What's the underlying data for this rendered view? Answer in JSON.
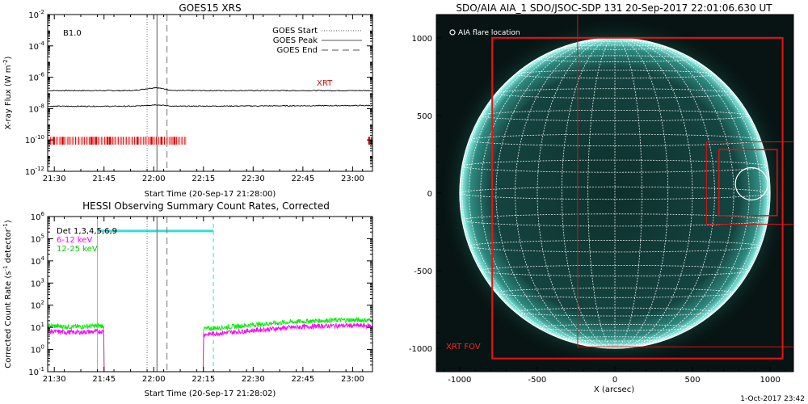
{
  "chart_data": [
    {
      "type": "line",
      "title": "GOES15 XRS",
      "xlabel": "Start Time (20-Sep-17 21:28:00)",
      "ylabel": "X-ray Flux (W m",
      "ylabel_sup": "-2",
      "y_scale": "log",
      "ylim_exp": [
        -12,
        -2
      ],
      "xlim": [
        "21:28",
        "23:06"
      ],
      "x_ticks": [
        "21:30",
        "21:45",
        "22:00",
        "22:15",
        "22:30",
        "22:45",
        "23:00"
      ],
      "y_ticks": [
        {
          "base": "10",
          "exp": "-12"
        },
        {
          "base": "10",
          "exp": "-10"
        },
        {
          "base": "10",
          "exp": "-8"
        },
        {
          "base": "10",
          "exp": "-6"
        },
        {
          "base": "10",
          "exp": "-4"
        },
        {
          "base": "10",
          "exp": "-2"
        }
      ],
      "class_label": "B1.0",
      "xrt_label": "XRT",
      "legend": [
        {
          "label": "GOES Start",
          "style": "dotted"
        },
        {
          "label": "GOES Peak",
          "style": "solid"
        },
        {
          "label": "GOES End",
          "style": "dashed"
        }
      ],
      "event_lines": {
        "start": "21:58",
        "peak": "22:01",
        "end": "22:04"
      },
      "series": [
        {
          "color": "#000000",
          "log_flux": [
            [
              21.47,
              -6.85
            ],
            [
              21.9,
              -6.85
            ],
            [
              22.01,
              -6.65
            ],
            [
              22.1,
              -6.85
            ],
            [
              23.1,
              -6.85
            ]
          ]
        },
        {
          "color": "#000000",
          "log_flux": [
            [
              21.47,
              -7.85
            ],
            [
              21.9,
              -7.85
            ],
            [
              22.01,
              -7.75
            ],
            [
              22.1,
              -7.85
            ],
            [
              23.1,
              -7.8
            ]
          ]
        }
      ],
      "xrt_obs": [
        [
          "21:28",
          "22:10"
        ],
        [
          "23:05",
          "23:06"
        ]
      ]
    },
    {
      "type": "line",
      "title": "HESSI Observing Summary Count Rates, Corrected",
      "xlabel": "Start Time (20-Sep-17 21:28:02)",
      "ylabel": "Corrected Count Rate (s",
      "ylabel_sup1": "-1",
      "ylabel_mid": " detector",
      "ylabel_sup2": "-1",
      "y_scale": "log",
      "ylim_exp": [
        -1,
        6
      ],
      "xlim": [
        "21:28",
        "23:06"
      ],
      "x_ticks": [
        "21:30",
        "21:45",
        "22:00",
        "22:15",
        "22:30",
        "22:45",
        "23:00"
      ],
      "y_ticks": [
        {
          "base": "10",
          "exp": "-1"
        },
        {
          "base": "10",
          "exp": "0"
        },
        {
          "base": "10",
          "exp": "1"
        },
        {
          "base": "10",
          "exp": "2"
        },
        {
          "base": "10",
          "exp": "3"
        },
        {
          "base": "10",
          "exp": "4"
        },
        {
          "base": "10",
          "exp": "5"
        },
        {
          "base": "10",
          "exp": "6"
        }
      ],
      "series": [
        {
          "name": "Det 1,3,4,5,6,9",
          "color": "#000000"
        },
        {
          "name": "6-12 keV",
          "color": "#ff00ff"
        },
        {
          "name": "12-25 keV",
          "color": "#00ee00"
        }
      ],
      "markers": {
        "night_start": "21:43",
        "night_end": "22:18",
        "attenuator": [
          "21:43",
          "22:18"
        ]
      },
      "event_lines": {
        "start": "21:58",
        "peak": "22:01",
        "end": "22:04"
      }
    },
    {
      "type": "image",
      "title": "SDO/AIA AIA_1 SDO/JSOC-SDP 131 20-Sep-2017 22:01:06.630 UT",
      "xlabel": "X (arcsec)",
      "x_ticks": [
        "-1000",
        "-500",
        "0",
        "500",
        "1000"
      ],
      "y_ticks": [
        "-1000",
        "-500",
        "0",
        "500",
        "1000"
      ],
      "xlim": [
        -1150,
        1150
      ],
      "ylim": [
        -1150,
        1150
      ],
      "flare_label": "AIA flare location",
      "flare_location": [
        880,
        60
      ],
      "xrt_fov_label": "XRT FOV",
      "footer": "1-Oct-2017 23:42"
    }
  ]
}
